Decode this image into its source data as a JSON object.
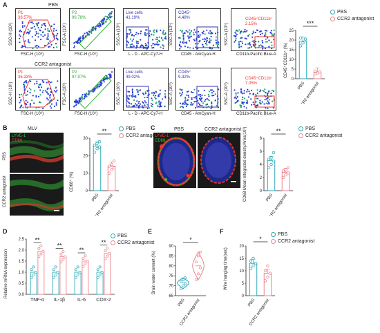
{
  "panelA": {
    "letter": "A",
    "rows": [
      {
        "group": "PBS",
        "p1": "P1",
        "p1_pct": "38.57%",
        "p2": "P2",
        "p2_pct": "96.78%",
        "live_label": "Live cells",
        "live_pct": "41.19%",
        "cd45_label": "CD45⁺",
        "cd45_pct": "4.48%",
        "cd11b_label": "CD45⁺CD11b⁺",
        "cd11b_pct": "2.15%"
      },
      {
        "group": "CCR2 antagonist",
        "p1": "P1",
        "p1_pct": "36.33%",
        "p2": "P2",
        "p2_pct": "97.97%",
        "live_label": "Live cells",
        "live_pct": "49.02%",
        "cd45_label": "CD45⁺",
        "cd45_pct": "9.32%",
        "cd11b_label": "CD45⁺CD11b⁺",
        "cd11b_pct": "7.05%"
      }
    ],
    "axes": {
      "fsc_h": "FSC-H (10⁶)",
      "ssc_h": "SSC-H (10⁶)",
      "fsc_a": "FSC-A (10⁶)",
      "ssc_a": "SSC-A (10⁶)",
      "ld": "L - D - APC-Cy7-H",
      "cd45": "CD45 - AmCyan-H",
      "cd11b": "CD11b-Pacific Blue-A"
    },
    "chart_ylabel": "CD45⁺CD11b⁺ (%)",
    "sig": "***"
  },
  "legend": {
    "pbs": "PBS",
    "ccr2": "CCR2 antagonist"
  },
  "colors": {
    "pbs": "#2aa7b5",
    "ccr2": "#e8838d",
    "red_gate": "#e33",
    "green_gate": "#3a3",
    "blue_gate": "#33a"
  },
  "panelB": {
    "letter": "B",
    "title": "MLV",
    "stain1": "LYVE-1",
    "stain2": "CD68",
    "row1": "PBS",
    "row2": "CCR2 antagonist",
    "ylabel": "CD68⁺ (%)",
    "sig": "**"
  },
  "panelC": {
    "letter": "C",
    "col1": "PBS",
    "col2": "CCR2 antagonist",
    "stain1": "LYVE-1",
    "stain2": "CD68",
    "ylabel": "CD68 Mean Integrated density/Area(10²)",
    "sig": "**"
  },
  "panelD": {
    "letter": "D",
    "ylabel": "Relative mRNA expression",
    "sig": [
      "**",
      "**",
      "**",
      "**"
    ]
  },
  "panelE": {
    "letter": "E",
    "ylabel": "Brain water content (%)",
    "sig": "*"
  },
  "panelF": {
    "letter": "F",
    "ylabel": "Wire hanging time(sec)",
    "sig": "*"
  },
  "chart_data": [
    {
      "id": "A",
      "type": "bar",
      "categories": [
        "PBS",
        "CCR2 antagonist"
      ],
      "values": [
        19.5,
        3.5
      ],
      "ylim": [
        0,
        25
      ],
      "yticks": [
        0,
        5,
        10,
        15,
        20,
        25
      ],
      "points": [
        [
          17,
          18.5,
          20.5,
          21
        ],
        [
          2.5,
          3,
          3.5,
          4
        ]
      ]
    },
    {
      "id": "B",
      "type": "bar",
      "categories": [
        "PBS",
        "CCR2 antagonist"
      ],
      "values": [
        25.5,
        14
      ],
      "ylim": [
        0,
        30
      ],
      "yticks": [
        0,
        10,
        20,
        30
      ],
      "points": [
        [
          22,
          24,
          25,
          26,
          27,
          28
        ],
        [
          10,
          12,
          13,
          14,
          15,
          17
        ]
      ]
    },
    {
      "id": "C",
      "type": "bar",
      "categories": [
        "PBS",
        "CCR2 antagonist"
      ],
      "values": [
        4.6,
        2.8
      ],
      "ylim": [
        0,
        8
      ],
      "yticks": [
        0,
        2,
        4,
        6,
        8
      ],
      "points": [
        [
          3.5,
          4,
          4.5,
          4.8,
          5,
          5.8
        ],
        [
          2,
          2.4,
          2.7,
          3,
          3.2,
          3.5
        ]
      ]
    },
    {
      "id": "D",
      "type": "bar",
      "categories": [
        "TNF-α",
        "IL-1β",
        "IL-6",
        "COX-2"
      ],
      "ylim": [
        0,
        2.5
      ],
      "yticks": [
        0.0,
        0.5,
        1.0,
        1.5,
        2.0,
        2.5
      ],
      "series": [
        {
          "name": "PBS",
          "values": [
            1.0,
            1.0,
            1.0,
            1.0
          ]
        },
        {
          "name": "CCR2 antagonist",
          "values": [
            1.95,
            1.7,
            1.5,
            1.85
          ]
        }
      ]
    },
    {
      "id": "E",
      "type": "violin",
      "categories": [
        "PBS",
        "CCR2 antagonist"
      ],
      "values": [
        71.5,
        80
      ],
      "ylim": [
        65,
        90
      ],
      "yticks": [
        65,
        70,
        75,
        80,
        85,
        90
      ],
      "points": [
        [
          68.5,
          70,
          71,
          72,
          73,
          74
        ],
        [
          73,
          76,
          79,
          82,
          85,
          87
        ]
      ]
    },
    {
      "id": "F",
      "type": "bar",
      "categories": [
        "PBS",
        "CCR2 antagonist"
      ],
      "values": [
        13,
        9
      ],
      "ylim": [
        0,
        20
      ],
      "yticks": [
        0,
        5,
        10,
        15,
        20
      ],
      "points": [
        [
          11,
          12,
          13,
          14,
          15
        ],
        [
          6,
          7.5,
          9,
          10,
          12
        ]
      ]
    }
  ]
}
